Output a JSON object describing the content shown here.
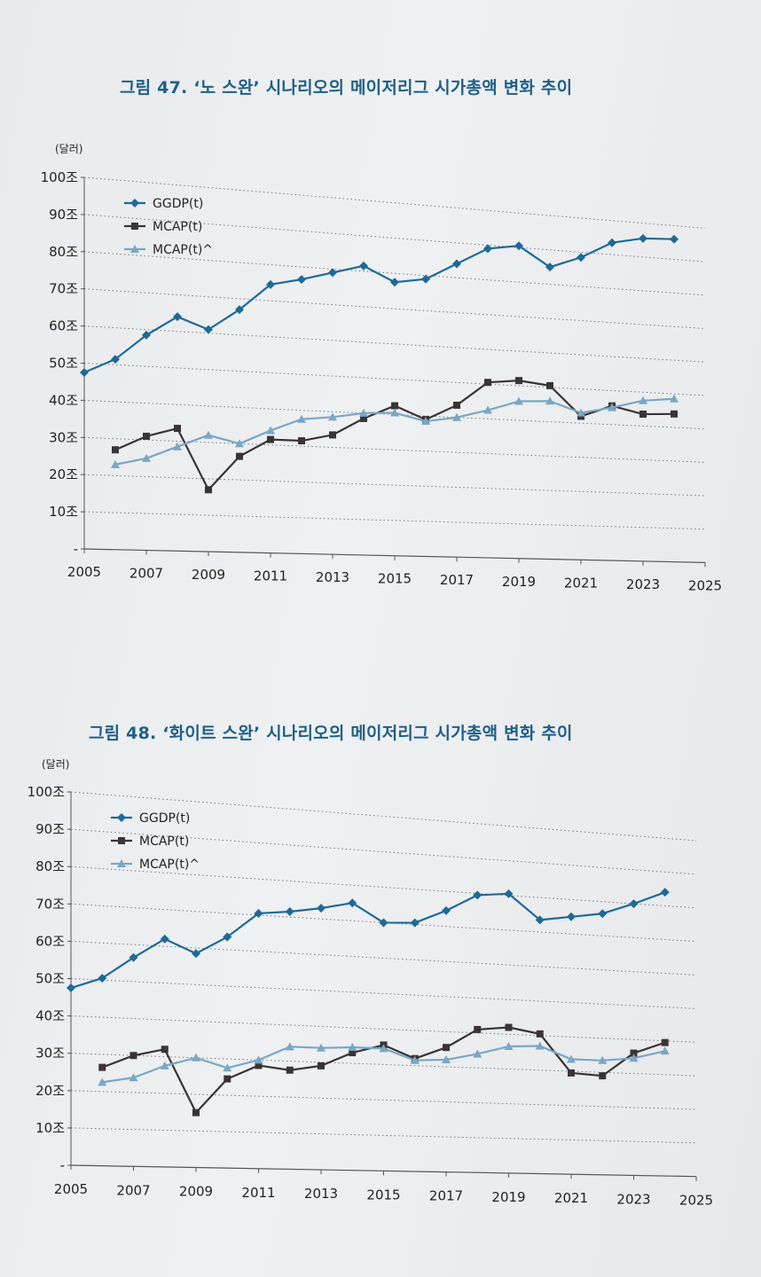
{
  "chart_data": [
    {
      "type": "line",
      "title": "그림 47. ‘노 스완’ 시나리오의 메이저리그 시가총액 변화 추이",
      "ylabel": "(달러)",
      "ylim": [
        0,
        100
      ],
      "xlim": [
        2005,
        2025
      ],
      "y_ticks": [
        "-",
        "10조",
        "20조",
        "30조",
        "40조",
        "50조",
        "60조",
        "70조",
        "80조",
        "90조",
        "100조"
      ],
      "x_ticks": [
        "2005",
        "2007",
        "2009",
        "2011",
        "2013",
        "2015",
        "2017",
        "2019",
        "2021",
        "2023",
        "2025"
      ],
      "grid": "horizontal dotted",
      "legend_position": "top-left",
      "series": [
        {
          "name": "GGDP(t)",
          "color": "#1e6a96",
          "marker": "diamond",
          "x": [
            2005,
            2006,
            2007,
            2008,
            2009,
            2010,
            2011,
            2012,
            2013,
            2014,
            2015,
            2016,
            2017,
            2018,
            2019,
            2020,
            2021,
            2022,
            2023,
            2024
          ],
          "values": [
            47.5,
            51.5,
            58.5,
            64,
            61,
            67,
            74.5,
            76.5,
            79,
            81.5,
            77.5,
            79,
            84,
            89,
            90.5,
            85,
            88.5,
            93.5,
            95.5,
            96
          ]
        },
        {
          "name": "MCAP(t)",
          "color": "#3a3436",
          "marker": "square",
          "x": [
            2006,
            2007,
            2008,
            2009,
            2010,
            2011,
            2012,
            2013,
            2014,
            2015,
            2016,
            2017,
            2018,
            2019,
            2020,
            2021,
            2022,
            2023,
            2024
          ],
          "values": [
            27,
            31,
            33.5,
            17,
            26.5,
            31.5,
            31.5,
            33.5,
            38.5,
            42.5,
            39,
            43.5,
            50.5,
            51.5,
            50.5,
            42,
            45.5,
            43.5,
            44
          ]
        },
        {
          "name": "MCAP(t)^",
          "color": "#7aa7c2",
          "marker": "triangle",
          "x": [
            2006,
            2007,
            2008,
            2009,
            2010,
            2011,
            2012,
            2013,
            2014,
            2015,
            2016,
            2017,
            2018,
            2019,
            2020,
            2021,
            2022,
            2023,
            2024
          ],
          "values": [
            23,
            25,
            28.5,
            32,
            30,
            34,
            37.5,
            38.5,
            40,
            40.5,
            38.5,
            40,
            42.5,
            45.5,
            46,
            43,
            45,
            47.5,
            48.5
          ]
        }
      ]
    },
    {
      "type": "line",
      "title": "그림 48. ‘화이트 스완’ 시나리오의 메이저리그 시가총액 변화 추이",
      "ylabel": "(달러)",
      "ylim": [
        0,
        100
      ],
      "xlim": [
        2005,
        2025
      ],
      "y_ticks": [
        "-",
        "10조",
        "20조",
        "30조",
        "40조",
        "50조",
        "60조",
        "70조",
        "80조",
        "90조",
        "100조"
      ],
      "x_ticks": [
        "2005",
        "2007",
        "2009",
        "2011",
        "2013",
        "2015",
        "2017",
        "2019",
        "2021",
        "2023",
        "2025"
      ],
      "grid": "horizontal dotted",
      "legend_position": "top-left",
      "series": [
        {
          "name": "GGDP(t)",
          "color": "#1e6a96",
          "marker": "diamond",
          "x": [
            2005,
            2006,
            2007,
            2008,
            2009,
            2010,
            2011,
            2012,
            2013,
            2014,
            2015,
            2016,
            2017,
            2018,
            2019,
            2020,
            2021,
            2022,
            2023,
            2024
          ],
          "values": [
            47.5,
            50.5,
            56.5,
            62,
            58.5,
            63.5,
            70.5,
            71.5,
            73,
            75,
            70,
            70.5,
            74.5,
            79.5,
            80.5,
            73.5,
            75,
            76.5,
            80,
            84
          ]
        },
        {
          "name": "MCAP(t)",
          "color": "#3a3436",
          "marker": "square",
          "x": [
            2006,
            2007,
            2008,
            2009,
            2010,
            2011,
            2012,
            2013,
            2014,
            2015,
            2016,
            2017,
            2018,
            2019,
            2020,
            2021,
            2022,
            2023,
            2024
          ],
          "values": [
            26.5,
            30,
            32,
            15,
            24.5,
            28.5,
            27.5,
            29,
            33,
            35.5,
            32,
            35.5,
            41,
            42,
            40.5,
            29.5,
            29,
            36,
            39.5
          ]
        },
        {
          "name": "MCAP(t)^",
          "color": "#7aa7c2",
          "marker": "triangle",
          "x": [
            2006,
            2007,
            2008,
            2009,
            2010,
            2011,
            2012,
            2013,
            2014,
            2015,
            2016,
            2017,
            2018,
            2019,
            2020,
            2021,
            2022,
            2023,
            2024
          ],
          "values": [
            22.5,
            24,
            27.5,
            30,
            27.5,
            30,
            34,
            34,
            34.5,
            34.5,
            31.5,
            32,
            34,
            36.5,
            37,
            33.5,
            33.5,
            34.5,
            37
          ]
        }
      ]
    }
  ]
}
